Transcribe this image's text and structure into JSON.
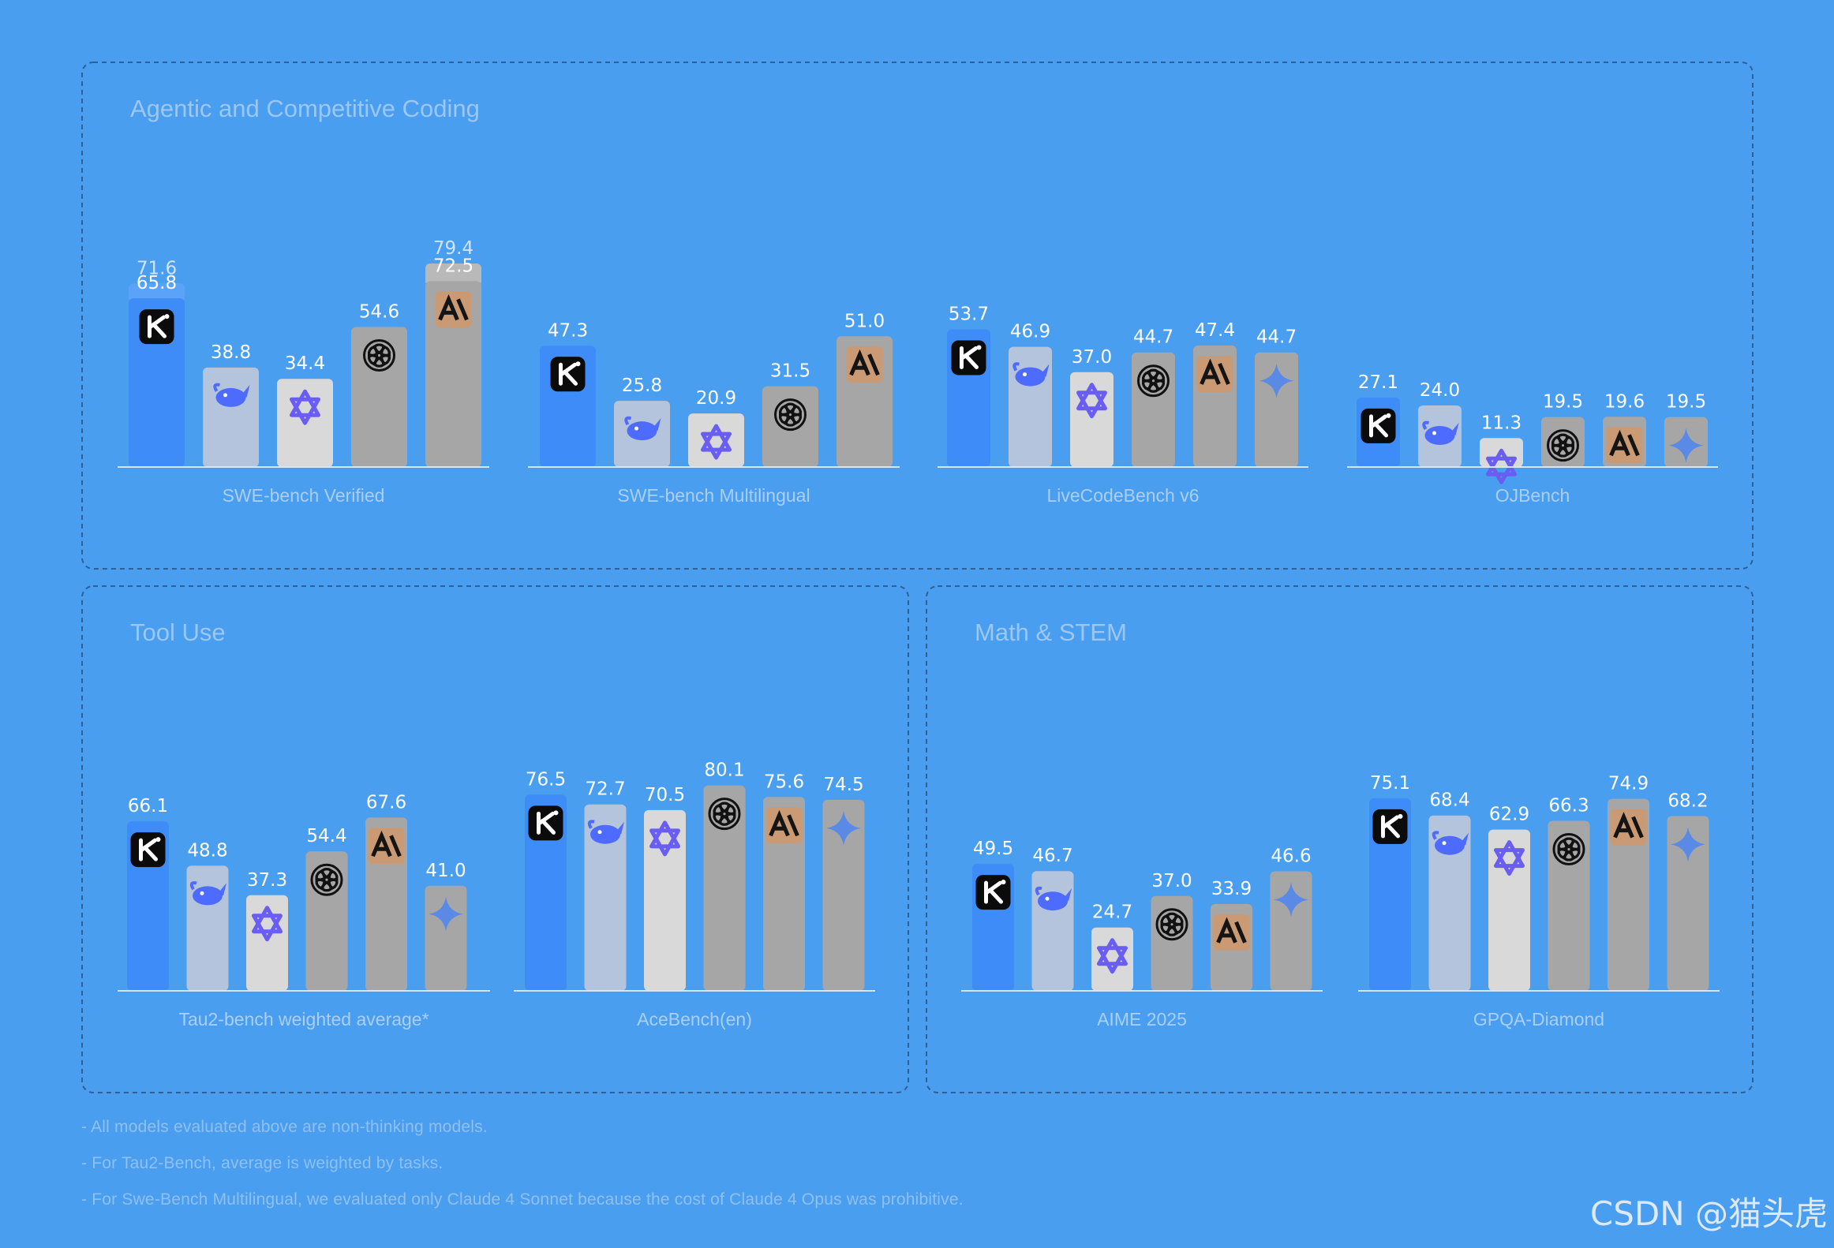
{
  "colors": {
    "background": "#4a9ef0",
    "panel_title": "#9cc7f2",
    "axis_label": "#a9cff5",
    "value_label": "#ffffff",
    "kimi": "#3e8cf7",
    "deepseek": "#b3c4dc",
    "qwen": "#d9d9d9",
    "openai": "#a6a6a6",
    "anthropic": "#a6a6a6",
    "gemini": "#a6a6a6",
    "anthropic_badge": "#c99a74"
  },
  "model_icons": [
    "kimi-logo-icon",
    "deepseek-whale-icon",
    "qwen-logo-icon",
    "openai-logo-icon",
    "anthropic-logo-icon",
    "gemini-sparkle-icon"
  ],
  "panels": [
    {
      "title": "Agentic and Competitive Coding"
    },
    {
      "title": "Tool Use"
    },
    {
      "title": "Math & STEM"
    }
  ],
  "chart_data": [
    {
      "type": "bar",
      "panel": "Agentic and Competitive Coding",
      "category": "SWE-bench Verified",
      "models": [
        "kimi",
        "deepseek",
        "qwen",
        "openai",
        "anthropic"
      ],
      "values": [
        65.8,
        38.8,
        34.4,
        54.6,
        72.5
      ],
      "extra_values": [
        71.6,
        null,
        null,
        null,
        79.4
      ]
    },
    {
      "type": "bar",
      "panel": "Agentic and Competitive Coding",
      "category": "SWE-bench Multilingual",
      "models": [
        "kimi",
        "deepseek",
        "qwen",
        "openai",
        "anthropic"
      ],
      "values": [
        47.3,
        25.8,
        20.9,
        31.5,
        51.0
      ]
    },
    {
      "type": "bar",
      "panel": "Agentic and Competitive Coding",
      "category": "LiveCodeBench v6",
      "models": [
        "kimi",
        "deepseek",
        "qwen",
        "openai",
        "anthropic",
        "gemini"
      ],
      "values": [
        53.7,
        46.9,
        37.0,
        44.7,
        47.4,
        44.7
      ]
    },
    {
      "type": "bar",
      "panel": "Agentic and Competitive Coding",
      "category": "OJBench",
      "models": [
        "kimi",
        "deepseek",
        "qwen",
        "openai",
        "anthropic",
        "gemini"
      ],
      "values": [
        27.1,
        24.0,
        11.3,
        19.5,
        19.6,
        19.5
      ]
    },
    {
      "type": "bar",
      "panel": "Tool Use",
      "category": "Tau2-bench weighted average*",
      "models": [
        "kimi",
        "deepseek",
        "qwen",
        "openai",
        "anthropic",
        "gemini"
      ],
      "values": [
        66.1,
        48.8,
        37.3,
        54.4,
        67.6,
        41.0
      ]
    },
    {
      "type": "bar",
      "panel": "Tool Use",
      "category": "AceBench(en)",
      "models": [
        "kimi",
        "deepseek",
        "qwen",
        "openai",
        "anthropic",
        "gemini"
      ],
      "values": [
        76.5,
        72.7,
        70.5,
        80.1,
        75.6,
        74.5
      ]
    },
    {
      "type": "bar",
      "panel": "Math & STEM",
      "category": "AIME 2025",
      "models": [
        "kimi",
        "deepseek",
        "qwen",
        "openai",
        "anthropic",
        "gemini"
      ],
      "values": [
        49.5,
        46.7,
        24.7,
        37.0,
        33.9,
        46.6
      ]
    },
    {
      "type": "bar",
      "panel": "Math & STEM",
      "category": "GPQA-Diamond",
      "models": [
        "kimi",
        "deepseek",
        "qwen",
        "openai",
        "anthropic",
        "gemini"
      ],
      "values": [
        75.1,
        68.4,
        62.9,
        66.3,
        74.9,
        68.2
      ]
    }
  ],
  "footnotes": [
    "- All models evaluated above are non-thinking models.",
    "- For Tau2-Bench, average is weighted by tasks.",
    "- For Swe-Bench Multilingual, we evaluated only Claude 4 Sonnet because the cost of Claude 4 Opus was prohibitive."
  ],
  "watermark": "CSDN @猫头虎"
}
